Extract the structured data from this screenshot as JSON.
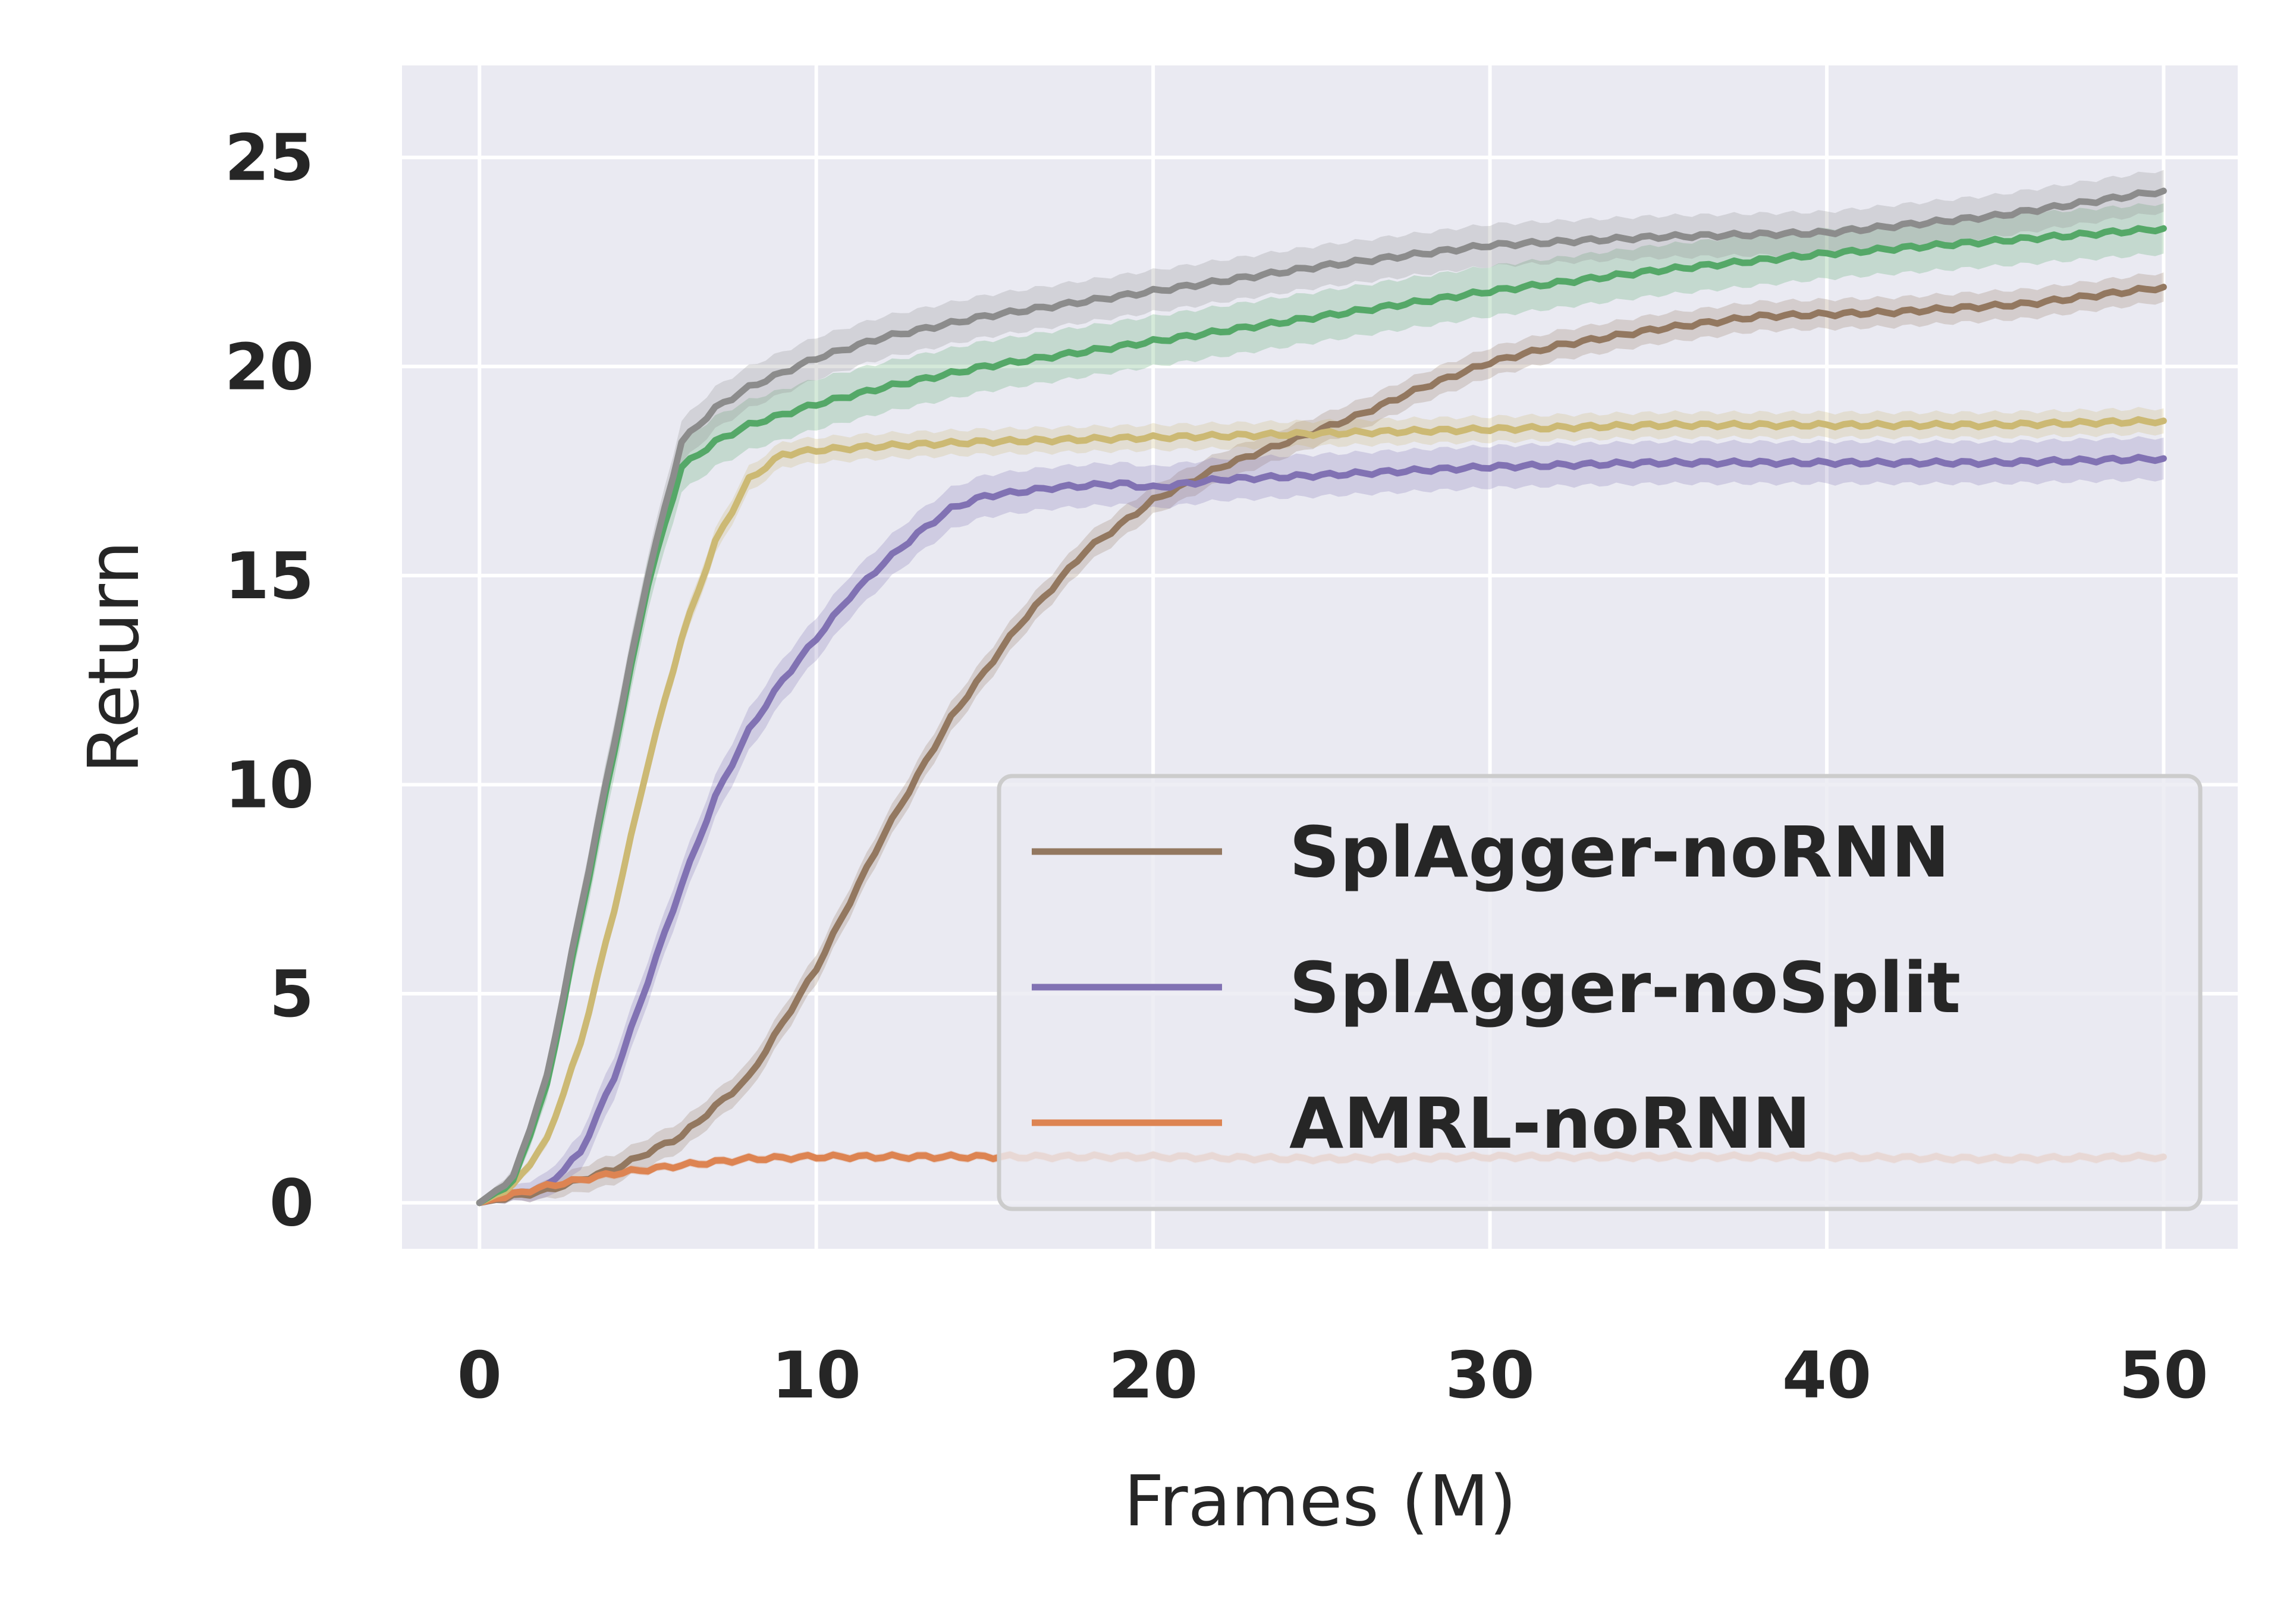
{
  "chart_data": {
    "type": "line",
    "xlabel": "Frames (M)",
    "ylabel": "Return",
    "xlim": [
      -2.3,
      52.2
    ],
    "ylim": [
      -1.1,
      27.2
    ],
    "xticks": [
      0,
      10,
      20,
      30,
      40,
      50
    ],
    "yticks": [
      0,
      5,
      10,
      15,
      20,
      25
    ],
    "grid": true,
    "legend_position": "lower-right",
    "legend": [
      {
        "label": "SplAgger-noRNN",
        "series": 0
      },
      {
        "label": "SplAgger-noSplit",
        "series": 1
      },
      {
        "label": "AMRL-noRNN",
        "series": 2
      }
    ],
    "series": [
      {
        "name": "SplAgger-noRNN",
        "color": "#937860",
        "band": 0.35,
        "points": [
          [
            0,
            0
          ],
          [
            2,
            0.3
          ],
          [
            4,
            0.8
          ],
          [
            6,
            1.6
          ],
          [
            8,
            3.0
          ],
          [
            10,
            5.6
          ],
          [
            12,
            8.8
          ],
          [
            14,
            11.6
          ],
          [
            16,
            13.8
          ],
          [
            18,
            15.6
          ],
          [
            20,
            16.8
          ],
          [
            22,
            17.6
          ],
          [
            24,
            18.2
          ],
          [
            26,
            18.8
          ],
          [
            28,
            19.5
          ],
          [
            30,
            20.1
          ],
          [
            32,
            20.5
          ],
          [
            35,
            20.9
          ],
          [
            38,
            21.2
          ],
          [
            42,
            21.3
          ],
          [
            46,
            21.5
          ],
          [
            50,
            21.9
          ]
        ]
      },
      {
        "name": "SplAgger-noSplit",
        "color": "#8172b3",
        "band": 0.5,
        "points": [
          [
            0,
            0
          ],
          [
            2,
            0.4
          ],
          [
            3,
            1.2
          ],
          [
            4,
            3.0
          ],
          [
            5,
            5.3
          ],
          [
            6,
            7.6
          ],
          [
            7,
            9.7
          ],
          [
            8,
            11.3
          ],
          [
            9,
            12.5
          ],
          [
            10,
            13.5
          ],
          [
            11,
            14.5
          ],
          [
            12,
            15.3
          ],
          [
            13,
            16.0
          ],
          [
            14,
            16.6
          ],
          [
            15,
            16.9
          ],
          [
            17,
            17.1
          ],
          [
            19,
            17.2
          ],
          [
            20,
            17.1
          ],
          [
            22,
            17.3
          ],
          [
            25,
            17.4
          ],
          [
            30,
            17.6
          ],
          [
            35,
            17.7
          ],
          [
            40,
            17.7
          ],
          [
            45,
            17.7
          ],
          [
            50,
            17.8
          ]
        ]
      },
      {
        "name": "AMRL-noRNN",
        "color": "#dd8452",
        "band": 0.1,
        "points": [
          [
            0,
            0
          ],
          [
            2,
            0.4
          ],
          [
            4,
            0.7
          ],
          [
            6,
            0.9
          ],
          [
            8,
            1.05
          ],
          [
            10,
            1.1
          ],
          [
            13,
            1.1
          ],
          [
            16,
            1.1
          ],
          [
            20,
            1.1
          ],
          [
            25,
            1.05
          ],
          [
            30,
            1.1
          ],
          [
            35,
            1.1
          ],
          [
            40,
            1.1
          ],
          [
            45,
            1.05
          ],
          [
            50,
            1.1
          ]
        ]
      },
      {
        "color": "#ccb974",
        "band": 0.3,
        "points": [
          [
            0,
            0
          ],
          [
            1,
            0.4
          ],
          [
            2,
            1.5
          ],
          [
            3,
            3.8
          ],
          [
            4,
            7.0
          ],
          [
            5,
            10.5
          ],
          [
            6,
            13.5
          ],
          [
            7,
            15.8
          ],
          [
            8,
            17.3
          ],
          [
            9,
            17.9
          ],
          [
            10,
            18.0
          ],
          [
            12,
            18.1
          ],
          [
            15,
            18.2
          ],
          [
            20,
            18.3
          ],
          [
            25,
            18.4
          ],
          [
            30,
            18.5
          ],
          [
            35,
            18.6
          ],
          [
            40,
            18.6
          ],
          [
            45,
            18.6
          ],
          [
            50,
            18.7
          ]
        ]
      },
      {
        "color": "#55a868",
        "band": 0.6,
        "points": [
          [
            0,
            0
          ],
          [
            1,
            0.5
          ],
          [
            2,
            2.8
          ],
          [
            3,
            6.8
          ],
          [
            4,
            10.8
          ],
          [
            5,
            14.8
          ],
          [
            6,
            17.6
          ],
          [
            7,
            18.2
          ],
          [
            8,
            18.6
          ],
          [
            10,
            19.1
          ],
          [
            12,
            19.5
          ],
          [
            15,
            20.0
          ],
          [
            20,
            20.6
          ],
          [
            25,
            21.2
          ],
          [
            30,
            21.8
          ],
          [
            35,
            22.3
          ],
          [
            40,
            22.7
          ],
          [
            45,
            23.0
          ],
          [
            50,
            23.3
          ]
        ]
      },
      {
        "color": "#8c8c8c",
        "band": 0.5,
        "points": [
          [
            0,
            0
          ],
          [
            1,
            0.6
          ],
          [
            2,
            3.0
          ],
          [
            3,
            7.0
          ],
          [
            4,
            11.0
          ],
          [
            5,
            15.0
          ],
          [
            6,
            18.2
          ],
          [
            7,
            19.0
          ],
          [
            8,
            19.5
          ],
          [
            10,
            20.2
          ],
          [
            12,
            20.7
          ],
          [
            15,
            21.2
          ],
          [
            20,
            21.8
          ],
          [
            25,
            22.4
          ],
          [
            30,
            22.9
          ],
          [
            35,
            23.1
          ],
          [
            40,
            23.2
          ],
          [
            45,
            23.6
          ],
          [
            50,
            24.2
          ]
        ]
      }
    ]
  }
}
